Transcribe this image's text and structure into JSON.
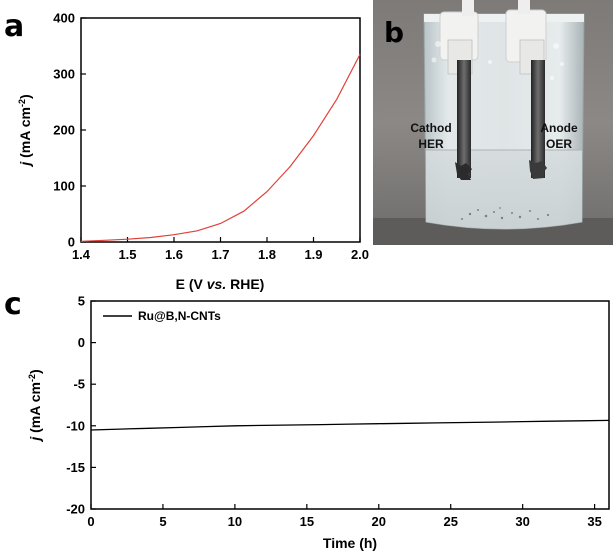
{
  "panels": {
    "a": {
      "letter": "a"
    },
    "b": {
      "letter": "b",
      "labels": {
        "cathode_line1": "Cathod",
        "cathode_line2": "HER",
        "anode_line1": "Anode",
        "anode_line2": "OER"
      }
    },
    "c": {
      "letter": "c"
    }
  },
  "colors": {
    "polarization_curve": "#e0413a",
    "stability_curve": "#000000"
  },
  "chart_data": [
    {
      "panel": "a",
      "type": "line",
      "x_ticks": [
        1.4,
        1.5,
        1.6,
        1.7,
        1.8,
        1.9,
        2.0
      ],
      "y_ticks": [
        0,
        100,
        200,
        300,
        400
      ],
      "xlim": [
        1.4,
        2.0
      ],
      "ylim": [
        0,
        400
      ],
      "xlabel": {
        "pre": "E (V ",
        "em": "vs.",
        "post": " RHE)"
      },
      "ylabel": {
        "j": "j",
        "rest": " (mA cm",
        "sup": "-2",
        "close": ")"
      },
      "series": [
        {
          "x": [
            1.4,
            1.45,
            1.5,
            1.55,
            1.6,
            1.65,
            1.7,
            1.75,
            1.8,
            1.85,
            1.9,
            1.95,
            2.0
          ],
          "y": [
            1,
            3,
            5,
            8,
            13,
            20,
            33,
            55,
            90,
            135,
            190,
            255,
            335
          ]
        }
      ],
      "grid": false
    },
    {
      "panel": "c",
      "type": "line",
      "x_ticks": [
        0,
        5,
        10,
        15,
        20,
        25,
        30,
        35
      ],
      "y_ticks": [
        5,
        0,
        -5,
        -10,
        -15,
        -20
      ],
      "xlim": [
        0,
        36
      ],
      "ylim": [
        -20,
        5
      ],
      "xlabel": {
        "pre": "Time (h)"
      },
      "ylabel": {
        "j": "j",
        "rest": " (mA cm",
        "sup": "-2",
        "close": ")"
      },
      "legend": {
        "entries": [
          "Ru@B,N-CNTs"
        ],
        "position": "top-left"
      },
      "series": [
        {
          "name": "Ru@B,N-CNTs",
          "x": [
            0,
            2,
            4,
            6,
            8,
            10,
            12,
            14,
            16,
            18,
            20,
            22,
            24,
            26,
            28,
            30,
            32,
            34,
            36
          ],
          "y": [
            -10.5,
            -10.4,
            -10.3,
            -10.2,
            -10.1,
            -10.0,
            -9.95,
            -9.9,
            -9.85,
            -9.8,
            -9.75,
            -9.7,
            -9.65,
            -9.6,
            -9.55,
            -9.5,
            -9.45,
            -9.4,
            -9.35
          ]
        }
      ],
      "grid": false
    }
  ]
}
